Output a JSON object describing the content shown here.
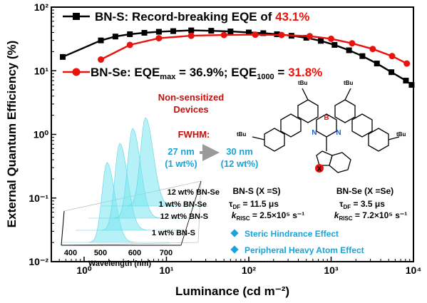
{
  "chart_data": {
    "type": "line",
    "xlabel": "Luminance (cd m⁻²)",
    "ylabel": "External Quantum Efficiency (%)",
    "xscale": "log",
    "yscale": "log",
    "xlim": [
      0.4,
      10000
    ],
    "ylim": [
      0.01,
      100
    ],
    "x_ticks": [
      "10⁰",
      "10¹",
      "10²",
      "10³",
      "10⁴"
    ],
    "y_ticks": [
      "10⁻²",
      "10⁻¹",
      "10⁰",
      "10¹",
      "10²"
    ],
    "legend_placement": "top-left",
    "series": [
      {
        "name": "BN-S",
        "color": "#000000",
        "marker": "square",
        "x": [
          0.55,
          1.6,
          2.4,
          3.6,
          5.4,
          8.1,
          12.1,
          20,
          35,
          60,
          100,
          150,
          220,
          330,
          500,
          750,
          1100,
          1650,
          2400,
          3600,
          5400,
          8100,
          9500
        ],
        "y": [
          16.5,
          30,
          34.5,
          37.5,
          39.5,
          41,
          42,
          43.1,
          42.5,
          41.5,
          40,
          39,
          37.5,
          35.5,
          33,
          29.5,
          25.5,
          21,
          17,
          13,
          9.5,
          7,
          6
        ]
      },
      {
        "name": "BN-Se",
        "color": "#e8130d",
        "marker": "circle",
        "x": [
          1.6,
          3.6,
          8.1,
          20,
          50,
          120,
          250,
          550,
          1000,
          1800,
          3200,
          5500,
          8300
        ],
        "y": [
          15,
          25.5,
          32.5,
          35.5,
          36.5,
          36.9,
          36.5,
          35,
          31.8,
          27,
          22,
          17,
          13
        ]
      }
    ]
  },
  "legend": {
    "bns_text": "BN-S: Record-breaking EQE of ",
    "bns_value": "43.1%",
    "bnse_prefix": "BN-Se: EQE",
    "bnse_sub1": "max",
    "bnse_mid": " = 36.9%; EQE",
    "bnse_sub2": "1000",
    "bnse_eq": " = ",
    "bnse_value": "31.8%"
  },
  "inset": {
    "title_line1": "Non-sensitized",
    "title_line2": "Devices",
    "fwhm_label": "FWHM:",
    "fwhm_left_value": "27 nm",
    "fwhm_left_cond": "(1 wt%)",
    "fwhm_right_value": "30 nm",
    "fwhm_right_cond": "(12 wt%)",
    "spectra_labels": [
      "12 wt% BN-Se",
      "1 wt% BN-Se",
      "12 wt% BN-S",
      "1 wt% BN-S"
    ],
    "wavelength_ticks": [
      "400",
      "500",
      "600",
      "700"
    ],
    "wavelength_label": "Wavelength (nm)"
  },
  "molecule": {
    "tbu": "tBu",
    "boron": "B",
    "nitrogen": "N",
    "x_atom": "X"
  },
  "properties": {
    "bns_title": "BN-S (X =S)",
    "bns_tau_label": "τ",
    "bns_tau_sub": "DF",
    "bns_tau_value": " = 11.5 μs",
    "bns_k_label": "k",
    "bns_k_sub": "RISC",
    "bns_k_value": " = 2.5×10⁵ s⁻¹",
    "bnse_title": "BN-Se (X =Se)",
    "bnse_tau_label": "τ",
    "bnse_tau_sub": "DF",
    "bnse_tau_value": " = 3.5 μs",
    "bnse_k_label": "k",
    "bnse_k_sub": "RISC",
    "bnse_k_value": " = 7.2×10⁵ s⁻¹"
  },
  "effects": [
    "Steric Hindrance Effect",
    "Peripheral Heavy Atom Effect"
  ]
}
